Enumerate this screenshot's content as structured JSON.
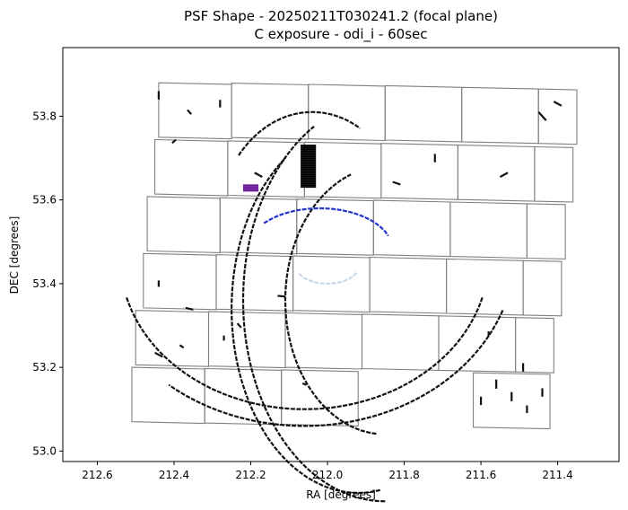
{
  "chart_data": {
    "type": "scatter",
    "title": "PSF Shape - 20250211T030241.2 (focal plane)",
    "subtitle": "C exposure - odi_i - 60sec",
    "xlabel": "RA [degrees]",
    "ylabel": "DEC [degrees]",
    "xlim": [
      212.69,
      211.24
    ],
    "ylim": [
      52.975,
      53.964
    ],
    "x_inverted": true,
    "x_ticks": [
      212.6,
      212.4,
      212.2,
      212.0,
      211.8,
      211.6,
      211.4
    ],
    "x_tick_labels": [
      "212.6",
      "212.4",
      "212.2",
      "212.0",
      "211.8",
      "211.6",
      "211.4"
    ],
    "y_ticks": [
      53.0,
      53.2,
      53.4,
      53.6,
      53.8
    ],
    "y_tick_labels": [
      "53.0",
      "53.2",
      "53.4",
      "53.6",
      "53.8"
    ],
    "grid": false,
    "legend": "none",
    "ota_outline_color": "#808080",
    "otas": [
      [
        [
          212.44,
          53.88
        ],
        [
          212.25,
          53.876
        ],
        [
          212.25,
          53.746
        ],
        [
          212.44,
          53.75
        ]
      ],
      [
        [
          212.25,
          53.879
        ],
        [
          212.05,
          53.875
        ],
        [
          212.05,
          53.745
        ],
        [
          212.25,
          53.749
        ]
      ],
      [
        [
          212.05,
          53.876
        ],
        [
          211.85,
          53.872
        ],
        [
          211.85,
          53.742
        ],
        [
          212.05,
          53.746
        ]
      ],
      [
        [
          211.85,
          53.873
        ],
        [
          211.65,
          53.869
        ],
        [
          211.65,
          53.739
        ],
        [
          211.85,
          53.743
        ]
      ],
      [
        [
          211.65,
          53.869
        ],
        [
          211.45,
          53.865
        ],
        [
          211.45,
          53.735
        ],
        [
          211.65,
          53.739
        ]
      ],
      [
        [
          211.45,
          53.865
        ],
        [
          211.35,
          53.863
        ],
        [
          211.35,
          53.733
        ],
        [
          211.45,
          53.735
        ]
      ],
      [
        [
          212.45,
          53.744
        ],
        [
          212.26,
          53.74
        ],
        [
          212.26,
          53.61
        ],
        [
          212.45,
          53.614
        ]
      ],
      [
        [
          212.26,
          53.741
        ],
        [
          212.06,
          53.737
        ],
        [
          212.06,
          53.607
        ],
        [
          212.26,
          53.611
        ]
      ],
      [
        [
          212.06,
          53.738
        ],
        [
          211.86,
          53.734
        ],
        [
          211.86,
          53.604
        ],
        [
          212.06,
          53.608
        ]
      ],
      [
        [
          211.86,
          53.735
        ],
        [
          211.66,
          53.731
        ],
        [
          211.66,
          53.601
        ],
        [
          211.86,
          53.605
        ]
      ],
      [
        [
          211.66,
          53.731
        ],
        [
          211.46,
          53.727
        ],
        [
          211.46,
          53.597
        ],
        [
          211.66,
          53.601
        ]
      ],
      [
        [
          211.46,
          53.727
        ],
        [
          211.36,
          53.725
        ],
        [
          211.36,
          53.595
        ],
        [
          211.46,
          53.597
        ]
      ],
      [
        [
          212.47,
          53.608
        ],
        [
          212.28,
          53.604
        ],
        [
          212.28,
          53.474
        ],
        [
          212.47,
          53.478
        ]
      ],
      [
        [
          212.28,
          53.605
        ],
        [
          212.08,
          53.601
        ],
        [
          212.08,
          53.471
        ],
        [
          212.28,
          53.475
        ]
      ],
      [
        [
          212.08,
          53.602
        ],
        [
          211.88,
          53.598
        ],
        [
          211.88,
          53.468
        ],
        [
          212.08,
          53.472
        ]
      ],
      [
        [
          211.88,
          53.599
        ],
        [
          211.68,
          53.595
        ],
        [
          211.68,
          53.465
        ],
        [
          211.88,
          53.469
        ]
      ],
      [
        [
          211.68,
          53.595
        ],
        [
          211.48,
          53.591
        ],
        [
          211.48,
          53.461
        ],
        [
          211.68,
          53.465
        ]
      ],
      [
        [
          211.48,
          53.591
        ],
        [
          211.38,
          53.589
        ],
        [
          211.38,
          53.459
        ],
        [
          211.48,
          53.461
        ]
      ],
      [
        [
          212.48,
          53.472
        ],
        [
          212.29,
          53.468
        ],
        [
          212.29,
          53.338
        ],
        [
          212.48,
          53.342
        ]
      ],
      [
        [
          212.29,
          53.469
        ],
        [
          212.09,
          53.465
        ],
        [
          212.09,
          53.335
        ],
        [
          212.29,
          53.339
        ]
      ],
      [
        [
          212.09,
          53.466
        ],
        [
          211.89,
          53.462
        ],
        [
          211.89,
          53.332
        ],
        [
          212.09,
          53.336
        ]
      ],
      [
        [
          211.89,
          53.463
        ],
        [
          211.69,
          53.459
        ],
        [
          211.69,
          53.329
        ],
        [
          211.89,
          53.333
        ]
      ],
      [
        [
          211.69,
          53.459
        ],
        [
          211.49,
          53.455
        ],
        [
          211.49,
          53.325
        ],
        [
          211.69,
          53.329
        ]
      ],
      [
        [
          211.49,
          53.455
        ],
        [
          211.39,
          53.453
        ],
        [
          211.39,
          53.323
        ],
        [
          211.49,
          53.325
        ]
      ],
      [
        [
          212.5,
          53.336
        ],
        [
          212.31,
          53.332
        ],
        [
          212.31,
          53.202
        ],
        [
          212.5,
          53.206
        ]
      ],
      [
        [
          212.31,
          53.333
        ],
        [
          212.11,
          53.329
        ],
        [
          212.11,
          53.199
        ],
        [
          212.31,
          53.203
        ]
      ],
      [
        [
          212.11,
          53.33
        ],
        [
          211.91,
          53.326
        ],
        [
          211.91,
          53.196
        ],
        [
          212.11,
          53.2
        ]
      ],
      [
        [
          211.91,
          53.327
        ],
        [
          211.71,
          53.323
        ],
        [
          211.71,
          53.193
        ],
        [
          211.91,
          53.197
        ]
      ],
      [
        [
          211.71,
          53.323
        ],
        [
          211.51,
          53.319
        ],
        [
          211.51,
          53.189
        ],
        [
          211.71,
          53.193
        ]
      ],
      [
        [
          211.51,
          53.319
        ],
        [
          211.41,
          53.317
        ],
        [
          211.41,
          53.187
        ],
        [
          211.51,
          53.189
        ]
      ],
      [
        [
          212.51,
          53.2
        ],
        [
          212.32,
          53.196
        ],
        [
          212.32,
          53.066
        ],
        [
          212.51,
          53.07
        ]
      ],
      [
        [
          212.32,
          53.197
        ],
        [
          212.12,
          53.193
        ],
        [
          212.12,
          53.063
        ],
        [
          212.32,
          53.067
        ]
      ],
      [
        [
          212.12,
          53.194
        ],
        [
          211.92,
          53.19
        ],
        [
          211.92,
          53.06
        ],
        [
          212.12,
          53.064
        ]
      ],
      [
        [
          211.62,
          53.187
        ],
        [
          211.42,
          53.183
        ],
        [
          211.42,
          53.053
        ],
        [
          211.62,
          53.057
        ]
      ]
    ],
    "arcs": [
      {
        "cx": 211.92,
        "cy": 53.34,
        "rx": 0.33,
        "ry": 0.44,
        "a0": -100,
        "a1": 55,
        "color": "#111111"
      },
      {
        "cx": 211.85,
        "cy": 53.36,
        "rx": 0.26,
        "ry": 0.32,
        "a0": -85,
        "a1": 70,
        "color": "#111111"
      },
      {
        "cx": 211.85,
        "cy": 53.36,
        "rx": 0.37,
        "ry": 0.48,
        "a0": -90,
        "a1": 60,
        "color": "#111111"
      },
      {
        "cx": 212.06,
        "cy": 53.46,
        "rx": 0.48,
        "ry": 0.36,
        "a0": 195,
        "a1": 345,
        "color": "#111111"
      },
      {
        "cx": 212.06,
        "cy": 53.48,
        "rx": 0.55,
        "ry": 0.42,
        "a0": 200,
        "a1": 310,
        "color": "#111111"
      },
      {
        "cx": 212.04,
        "cy": 53.52,
        "rx": 0.25,
        "ry": 0.29,
        "a0": 40,
        "a1": 120,
        "color": "#111111"
      },
      {
        "cx": 212.02,
        "cy": 53.48,
        "rx": 0.19,
        "ry": 0.1,
        "a0": 40,
        "a1": 160,
        "color": "#2233cc"
      },
      {
        "cx": 212.0,
        "cy": 53.44,
        "rx": 0.08,
        "ry": 0.04,
        "a0": 200,
        "a1": 340,
        "color": "#c8d8e8"
      }
    ],
    "whisker_points": [
      {
        "x": 212.44,
        "y": 53.85,
        "dx": 0.0,
        "dy": 0.02
      },
      {
        "x": 212.36,
        "y": 53.81,
        "dx": 0.01,
        "dy": 0.01
      },
      {
        "x": 212.28,
        "y": 53.83,
        "dx": 0.0,
        "dy": 0.018
      },
      {
        "x": 212.18,
        "y": 53.66,
        "dx": 0.02,
        "dy": 0.01
      },
      {
        "x": 212.4,
        "y": 53.74,
        "dx": -0.01,
        "dy": 0.008
      },
      {
        "x": 211.82,
        "y": 53.64,
        "dx": 0.02,
        "dy": 0.006
      },
      {
        "x": 211.72,
        "y": 53.7,
        "dx": 0.0,
        "dy": 0.02
      },
      {
        "x": 211.54,
        "y": 53.66,
        "dx": -0.02,
        "dy": 0.01
      },
      {
        "x": 211.44,
        "y": 53.8,
        "dx": 0.02,
        "dy": 0.02
      },
      {
        "x": 211.4,
        "y": 53.83,
        "dx": 0.02,
        "dy": 0.01
      },
      {
        "x": 212.44,
        "y": 53.4,
        "dx": 0.0,
        "dy": 0.015
      },
      {
        "x": 212.36,
        "y": 53.34,
        "dx": 0.02,
        "dy": 0.004
      },
      {
        "x": 212.23,
        "y": 53.3,
        "dx": 0.01,
        "dy": 0.01
      },
      {
        "x": 212.12,
        "y": 53.37,
        "dx": 0.02,
        "dy": 0.002
      },
      {
        "x": 211.58,
        "y": 53.28,
        "dx": 0.0,
        "dy": 0.012
      },
      {
        "x": 211.49,
        "y": 53.2,
        "dx": 0.0,
        "dy": 0.02
      },
      {
        "x": 211.56,
        "y": 53.16,
        "dx": 0.0,
        "dy": 0.022
      },
      {
        "x": 211.52,
        "y": 53.13,
        "dx": 0.0,
        "dy": 0.022
      },
      {
        "x": 211.48,
        "y": 53.1,
        "dx": 0.0,
        "dy": 0.018
      },
      {
        "x": 211.6,
        "y": 53.12,
        "dx": 0.0,
        "dy": 0.02
      },
      {
        "x": 211.44,
        "y": 53.14,
        "dx": 0.0,
        "dy": 0.02
      },
      {
        "x": 212.06,
        "y": 53.16,
        "dx": 0.01,
        "dy": 0.004
      },
      {
        "x": 212.44,
        "y": 53.23,
        "dx": 0.02,
        "dy": 0.01
      },
      {
        "x": 212.38,
        "y": 53.25,
        "dx": 0.01,
        "dy": 0.006
      },
      {
        "x": 212.27,
        "y": 53.27,
        "dx": 0.0,
        "dy": 0.012
      }
    ],
    "dense_blocks": [
      {
        "x0": 212.07,
        "x1": 212.03,
        "y0": 53.63,
        "y1": 53.73,
        "color": "#000000"
      },
      {
        "x0": 212.22,
        "x1": 212.18,
        "y0": 53.62,
        "y1": 53.635,
        "color": "#6a1b9a"
      }
    ]
  }
}
